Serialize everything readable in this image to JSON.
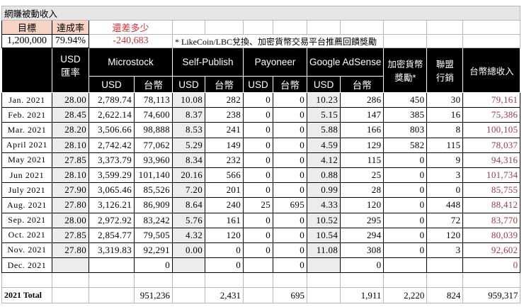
{
  "sheet_title": "網賺被動收入",
  "summary": {
    "target_label": "目標",
    "rate_label": "達成率",
    "gap_label": "還差多少",
    "target_value": "1,200,000",
    "rate_value": "79.94%",
    "gap_value": "-240,683",
    "note": "* LikeCoin/LBC兌換、加密貨幣交易平台推薦回饋獎勵"
  },
  "headers": {
    "usd_rate": "USD\n匯率",
    "microstock": "Microstock",
    "self_publish": "Self-Publish",
    "payoneer": "Payoneer",
    "adsense": "Google AdSense",
    "crypto": "加密貨幣\n獎勵*",
    "affiliate": "聯盟\n行銷",
    "total_twd": "台幣總收入",
    "usd": "USD",
    "twd": "台幣"
  },
  "colors": {
    "header_bg": "#000000",
    "target_bg": "#f7d3c4",
    "gap_red": "#d03030",
    "total_color": "#9b3a4a",
    "usd_cell_bg": "#ececec"
  },
  "rows": [
    [
      "Jan. 2021",
      "28.00",
      "2,789.74",
      "78,113",
      "10.08",
      "282",
      "0",
      "0",
      "10.23",
      "286",
      "450",
      "30",
      "79,161"
    ],
    [
      "Feb. 2021",
      "28.45",
      "2,622.14",
      "74,600",
      "8.37",
      "238",
      "0",
      "0",
      "5.15",
      "147",
      "385",
      "16",
      "75,386"
    ],
    [
      "Mar. 2021",
      "28.20",
      "3,506.66",
      "98,888",
      "8.53",
      "241",
      "0",
      "0",
      "5.88",
      "166",
      "803",
      "8",
      "100,105"
    ],
    [
      "April 2021",
      "28.10",
      "2,742.42",
      "77,062",
      "5.29",
      "149",
      "0",
      "0",
      "4.59",
      "129",
      "582",
      "115",
      "78,037"
    ],
    [
      "May 2021",
      "27.85",
      "3,373.79",
      "93,960",
      "8.34",
      "232",
      "0",
      "0",
      "4.12",
      "115",
      "0",
      "9",
      "94,316"
    ],
    [
      "Jun 2021",
      "28.10",
      "3,599.29",
      "101,140",
      "20.16",
      "566",
      "0",
      "0",
      "0.88",
      "25",
      "0",
      "3",
      "101,734"
    ],
    [
      "July 2021",
      "27.90",
      "3,065.46",
      "85,526",
      "7.20",
      "201",
      "0",
      "0",
      "0.99",
      "28",
      "0",
      "0",
      "85,755"
    ],
    [
      "Aug. 2021",
      "27.80",
      "3,126.21",
      "86,909",
      "8.64",
      "240",
      "25",
      "695",
      "4.33",
      "120",
      "0",
      "448",
      "88,412"
    ],
    [
      "Sep. 2021",
      "28.00",
      "2,972.92",
      "83,242",
      "5.76",
      "161",
      "0",
      "0",
      "10.52",
      "295",
      "0",
      "72",
      "83,770"
    ],
    [
      "Oct. 2021",
      "27.85",
      "2,854.77",
      "79,505",
      "4.32",
      "120",
      "0",
      "0",
      "10.54",
      "294",
      "0",
      "120",
      "80,039"
    ],
    [
      "Nov. 2021",
      "27.80",
      "3,319.83",
      "92,291",
      "0.00",
      "0",
      "0",
      "0",
      "11.08",
      "308",
      "0",
      "3",
      "92,602"
    ],
    [
      "Dec. 2021",
      "",
      "",
      "0",
      "",
      "0",
      "",
      "0",
      "",
      "0",
      "",
      "",
      "0"
    ]
  ],
  "total_row": [
    "2021 Total",
    "",
    "",
    "951,236",
    "",
    "2,431",
    "",
    "695",
    "",
    "1,911",
    "2,220",
    "824",
    "959,317"
  ]
}
